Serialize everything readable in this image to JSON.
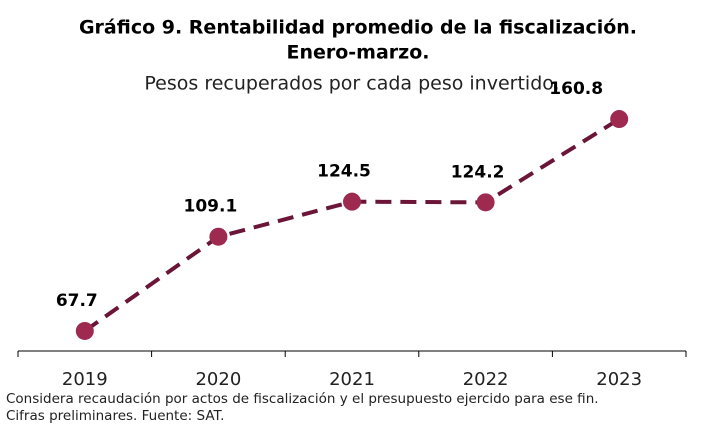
{
  "chart_data": {
    "type": "line",
    "title": "Gráfico 9. Rentabilidad promedio de la fiscalización.",
    "title_line2": "Enero-marzo.",
    "subtitle": "Pesos recuperados por cada peso invertido.",
    "categories": [
      "2019",
      "2020",
      "2021",
      "2022",
      "2023"
    ],
    "series": [
      {
        "name": "Rentabilidad",
        "color": "#6b1538",
        "marker_color": "#9e2a50",
        "values": [
          67.7,
          109.1,
          124.5,
          124.2,
          160.8
        ]
      }
    ],
    "ylim": [
      60,
      165
    ],
    "notes": [
      "Considera recaudación por actos de fiscalización y el presupuesto ejercido para ese fin.",
      "Cifras preliminares. Fuente: SAT."
    ]
  }
}
